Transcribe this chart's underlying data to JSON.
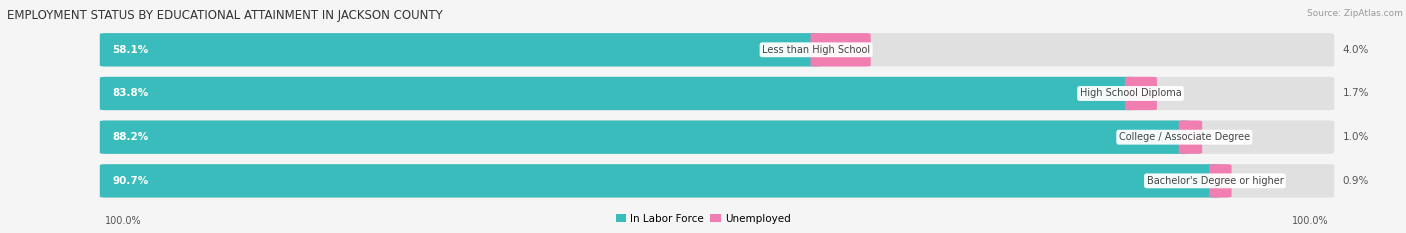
{
  "title": "EMPLOYMENT STATUS BY EDUCATIONAL ATTAINMENT IN JACKSON COUNTY",
  "source": "Source: ZipAtlas.com",
  "categories": [
    "Less than High School",
    "High School Diploma",
    "College / Associate Degree",
    "Bachelor's Degree or higher"
  ],
  "in_labor_force": [
    58.1,
    83.8,
    88.2,
    90.7
  ],
  "unemployed": [
    4.0,
    1.7,
    1.0,
    0.9
  ],
  "bar_color_labor": "#3BBCBC",
  "bar_color_unemployed": "#F07EB0",
  "bg_color": "#f5f5f5",
  "bar_bg_color": "#e0e0e0",
  "axis_label_left": "100.0%",
  "axis_label_right": "100.0%",
  "legend_labor": "In Labor Force",
  "legend_unemployed": "Unemployed",
  "title_fontsize": 8.5,
  "bar_label_fontsize": 7.5,
  "category_fontsize": 7.0,
  "legend_fontsize": 7.5,
  "axis_tick_fontsize": 7.0,
  "source_fontsize": 6.5
}
